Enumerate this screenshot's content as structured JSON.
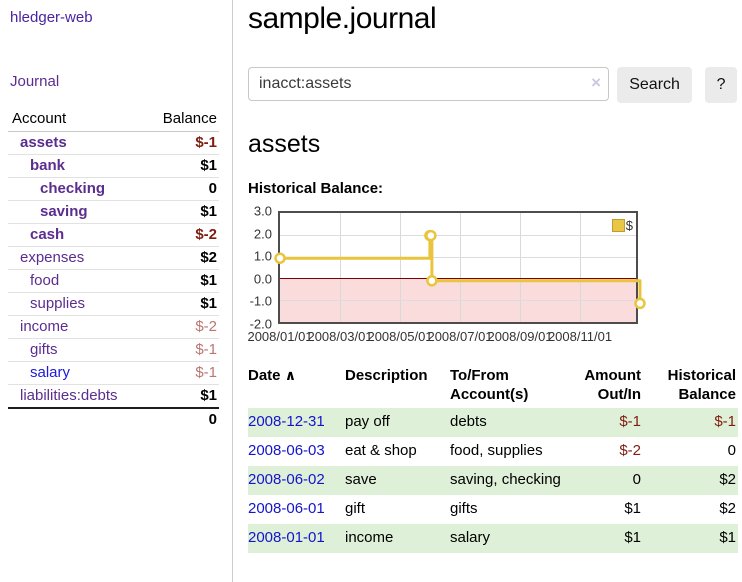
{
  "app": {
    "brand": "hledger-web"
  },
  "sidebar": {
    "journal_link": "Journal",
    "accounts": {
      "header_account": "Account",
      "header_balance": "Balance",
      "rows": [
        {
          "name": "assets",
          "balance": "$-1"
        },
        {
          "name": "bank",
          "balance": "$1"
        },
        {
          "name": "checking",
          "balance": "0"
        },
        {
          "name": "saving",
          "balance": "$1"
        },
        {
          "name": "cash",
          "balance": "$-2"
        },
        {
          "name": "expenses",
          "balance": "$2"
        },
        {
          "name": "food",
          "balance": "$1"
        },
        {
          "name": "supplies",
          "balance": "$1"
        },
        {
          "name": "income",
          "balance": "$-2"
        },
        {
          "name": "gifts",
          "balance": "$-1"
        },
        {
          "name": "salary",
          "balance": "$-1"
        },
        {
          "name": "liabilities:debts",
          "balance": "$1"
        }
      ],
      "total": "0"
    }
  },
  "main": {
    "title": "sample.journal",
    "search": {
      "value": "inacct:assets",
      "clear_icon": "×",
      "button": "Search",
      "help": "?"
    },
    "account_heading": "assets",
    "chart_title": "Historical Balance:"
  },
  "chart_data": {
    "type": "line",
    "title": "Historical Balance",
    "xlim": [
      "2008-01-01",
      "2008-12-31"
    ],
    "ylim": [
      -2.0,
      3.0
    ],
    "y_ticks": [
      "3.0",
      "2.0",
      "1.0",
      "0.0",
      "-1.0",
      "-2.0"
    ],
    "x_ticks": [
      "2008/01/01",
      "2008/03/01",
      "2008/05/01",
      "2008/07/01",
      "2008/09/01",
      "2008/11/01"
    ],
    "grid": true,
    "legend_position": "top-right",
    "legend": [
      {
        "label": "$",
        "color": "#e9c53e"
      }
    ],
    "zero_line_color": "#7a0000",
    "negative_region_color": "#fbdcdc",
    "series": [
      {
        "name": "$",
        "step": true,
        "color": "#e9c53e",
        "points": [
          {
            "date": "2008-01-01",
            "value": 1
          },
          {
            "date": "2008-06-01",
            "value": 2
          },
          {
            "date": "2008-06-02",
            "value": 2
          },
          {
            "date": "2008-06-03",
            "value": 0
          },
          {
            "date": "2008-12-31",
            "value": -1
          }
        ]
      }
    ]
  },
  "register": {
    "headers": {
      "date": "Date",
      "sort_icon": "∧",
      "description": "Description",
      "accounts": "To/From Account(s)",
      "amount": "Amount Out/In",
      "balance": "Historical Balance"
    },
    "rows": [
      {
        "date": "2008-12-31",
        "description": "pay off",
        "accounts": "debts",
        "amount": "$-1",
        "balance": "$-1"
      },
      {
        "date": "2008-06-03",
        "description": "eat & shop",
        "accounts": "food, supplies",
        "amount": "$-2",
        "balance": "0"
      },
      {
        "date": "2008-06-02",
        "description": "save",
        "accounts": "saving, checking",
        "amount": "0",
        "balance": "$2"
      },
      {
        "date": "2008-06-01",
        "description": "gift",
        "accounts": "gifts",
        "amount": "$1",
        "balance": "$2"
      },
      {
        "date": "2008-01-01",
        "description": "income",
        "accounts": "salary",
        "amount": "$1",
        "balance": "$1"
      }
    ]
  }
}
